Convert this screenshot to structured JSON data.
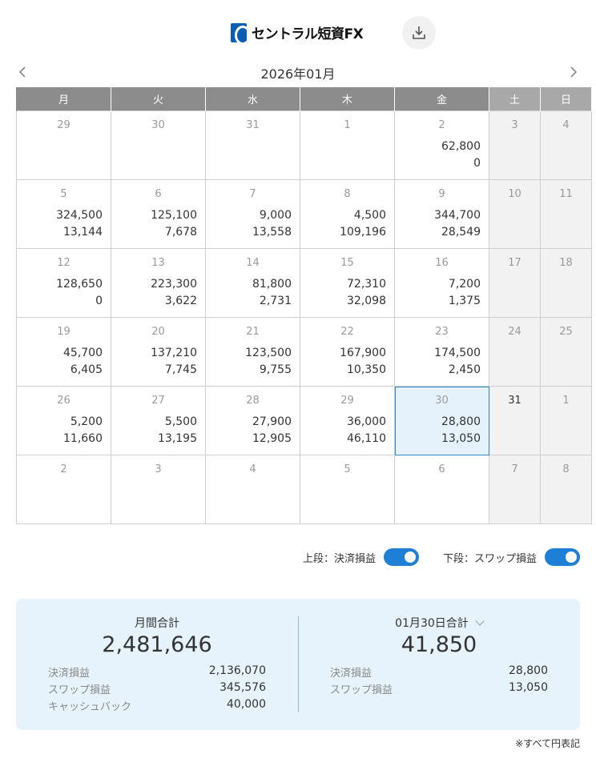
{
  "header": {
    "logo_text": "セントラル短資FX",
    "download_icon": "download-icon"
  },
  "calendar": {
    "month_title": "2026年01月",
    "weekdays": [
      "月",
      "火",
      "水",
      "木",
      "金",
      "土",
      "日"
    ],
    "weeks": [
      [
        {
          "day": "29",
          "current": false,
          "top": "",
          "bottom": ""
        },
        {
          "day": "30",
          "current": false,
          "top": "",
          "bottom": ""
        },
        {
          "day": "31",
          "current": false,
          "top": "",
          "bottom": ""
        },
        {
          "day": "1",
          "current": true,
          "top": "",
          "bottom": ""
        },
        {
          "day": "2",
          "current": true,
          "top": "62,800",
          "bottom": "0"
        },
        {
          "day": "3",
          "current": true,
          "top": "",
          "bottom": ""
        },
        {
          "day": "4",
          "current": true,
          "top": "",
          "bottom": ""
        }
      ],
      [
        {
          "day": "5",
          "current": true,
          "top": "324,500",
          "bottom": "13,144"
        },
        {
          "day": "6",
          "current": true,
          "top": "125,100",
          "bottom": "7,678"
        },
        {
          "day": "7",
          "current": true,
          "top": "9,000",
          "bottom": "13,558"
        },
        {
          "day": "8",
          "current": true,
          "top": "4,500",
          "bottom": "109,196"
        },
        {
          "day": "9",
          "current": true,
          "top": "344,700",
          "bottom": "28,549"
        },
        {
          "day": "10",
          "current": true,
          "top": "",
          "bottom": ""
        },
        {
          "day": "11",
          "current": true,
          "top": "",
          "bottom": ""
        }
      ],
      [
        {
          "day": "12",
          "current": true,
          "top": "128,650",
          "bottom": "0"
        },
        {
          "day": "13",
          "current": true,
          "top": "223,300",
          "bottom": "3,622"
        },
        {
          "day": "14",
          "current": true,
          "top": "81,800",
          "bottom": "2,731"
        },
        {
          "day": "15",
          "current": true,
          "top": "72,310",
          "bottom": "32,098"
        },
        {
          "day": "16",
          "current": true,
          "top": "7,200",
          "bottom": "1,375"
        },
        {
          "day": "17",
          "current": true,
          "top": "",
          "bottom": ""
        },
        {
          "day": "18",
          "current": true,
          "top": "",
          "bottom": ""
        }
      ],
      [
        {
          "day": "19",
          "current": true,
          "top": "45,700",
          "bottom": "6,405"
        },
        {
          "day": "20",
          "current": true,
          "top": "137,210",
          "bottom": "7,745"
        },
        {
          "day": "21",
          "current": true,
          "top": "123,500",
          "bottom": "9,755"
        },
        {
          "day": "22",
          "current": true,
          "top": "167,900",
          "bottom": "10,350"
        },
        {
          "day": "23",
          "current": true,
          "top": "174,500",
          "bottom": "2,450"
        },
        {
          "day": "24",
          "current": true,
          "top": "",
          "bottom": ""
        },
        {
          "day": "25",
          "current": true,
          "top": "",
          "bottom": ""
        }
      ],
      [
        {
          "day": "26",
          "current": true,
          "top": "5,200",
          "bottom": "11,660"
        },
        {
          "day": "27",
          "current": true,
          "top": "5,500",
          "bottom": "13,195"
        },
        {
          "day": "28",
          "current": true,
          "top": "27,900",
          "bottom": "12,905"
        },
        {
          "day": "29",
          "current": true,
          "top": "36,000",
          "bottom": "46,110"
        },
        {
          "day": "30",
          "current": true,
          "top": "28,800",
          "bottom": "13,050",
          "selected": true
        },
        {
          "day": "31",
          "current": true,
          "today": true,
          "top": "",
          "bottom": ""
        },
        {
          "day": "1",
          "current": false,
          "top": "",
          "bottom": ""
        }
      ],
      [
        {
          "day": "2",
          "current": false,
          "top": "",
          "bottom": ""
        },
        {
          "day": "3",
          "current": false,
          "top": "",
          "bottom": ""
        },
        {
          "day": "4",
          "current": false,
          "top": "",
          "bottom": ""
        },
        {
          "day": "5",
          "current": false,
          "top": "",
          "bottom": ""
        },
        {
          "day": "6",
          "current": false,
          "top": "",
          "bottom": ""
        },
        {
          "day": "7",
          "current": false,
          "top": "",
          "bottom": ""
        },
        {
          "day": "8",
          "current": false,
          "top": "",
          "bottom": ""
        }
      ]
    ]
  },
  "toggles": {
    "upper_label": "上段：決済損益",
    "upper_on": true,
    "lower_label": "下段：スワップ損益",
    "lower_on": true
  },
  "summary": {
    "monthly": {
      "title": "月間合計",
      "total": "2,481,646",
      "rows": [
        {
          "label": "決済損益",
          "value": "2,136,070"
        },
        {
          "label": "スワップ損益",
          "value": "345,576"
        },
        {
          "label": "キャッシュバック",
          "value": "40,000"
        }
      ]
    },
    "daily": {
      "title": "01月30日合計",
      "total": "41,850",
      "rows": [
        {
          "label": "決済損益",
          "value": "28,800"
        },
        {
          "label": "スワップ損益",
          "value": "13,050"
        }
      ]
    }
  },
  "footnote": "※すべて円表記",
  "colors": {
    "header_bg": "#8c8c8c",
    "weekend_header_bg": "#a8a8a8",
    "weekend_cell_bg": "#f2f2f2",
    "selected_bg": "#e6f2fb",
    "selected_border": "#2d86c9",
    "toggle_on": "#1e7fd6",
    "summary_bg": "#e6f3fc"
  }
}
